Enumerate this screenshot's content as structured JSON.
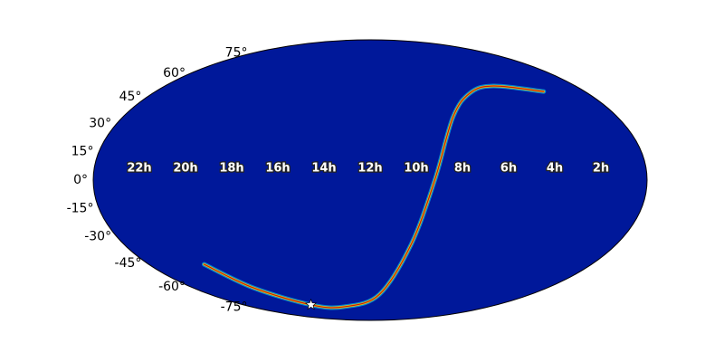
{
  "chart_data": {
    "type": "skymap",
    "x": [
      21.0,
      19.9,
      17.6,
      14.6,
      11.3,
      10.0,
      9.2,
      8.0,
      6.5,
      4.8,
      2.3
    ],
    "y": [
      -45.7,
      -60.5,
      -73,
      -74.6,
      -65,
      -34.2,
      0,
      33.2,
      47.3,
      51.7,
      48.3
    ],
    "marker": {
      "x": 17.6,
      "y": -73
    },
    "colors": [
      "#00d8ff",
      "#ffe000",
      "#d01800"
    ],
    "background": "#00189a",
    "xlim": [
      24,
      0
    ],
    "ylim": [
      -90,
      90
    ],
    "xticks": [
      {
        "value": 22,
        "label": "22h"
      },
      {
        "value": 20,
        "label": "20h"
      },
      {
        "value": 18,
        "label": "18h"
      },
      {
        "value": 16,
        "label": "16h"
      },
      {
        "value": 14,
        "label": "14h"
      },
      {
        "value": 12,
        "label": "12h"
      },
      {
        "value": 10,
        "label": "10h"
      },
      {
        "value": 8,
        "label": "8h"
      },
      {
        "value": 6,
        "label": "6h"
      },
      {
        "value": 4,
        "label": "4h"
      },
      {
        "value": 2,
        "label": "2h"
      }
    ],
    "yticks": [
      {
        "value": -75,
        "label": "-75°"
      },
      {
        "value": -60,
        "label": "-60°"
      },
      {
        "value": -45,
        "label": "-45°"
      },
      {
        "value": -30,
        "label": "-30°"
      },
      {
        "value": -15,
        "label": "-15°"
      },
      {
        "value": 0,
        "label": "0°"
      },
      {
        "value": 15,
        "label": "15°"
      },
      {
        "value": 30,
        "label": "30°"
      },
      {
        "value": 45,
        "label": "45°"
      },
      {
        "value": 60,
        "label": "60°"
      },
      {
        "value": 75,
        "label": "75°"
      }
    ]
  }
}
